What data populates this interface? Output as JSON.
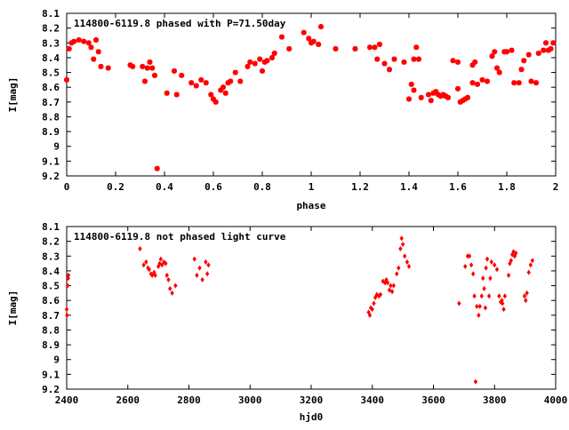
{
  "chart_data": [
    {
      "type": "scatter",
      "title": "114800-6119.8 phased with P=71.50day",
      "xlabel": "phase",
      "ylabel": "I[mag]",
      "xlim": [
        0,
        2
      ],
      "ylim": [
        9.2,
        8.1
      ],
      "y_inverted": true,
      "grid": false,
      "marker_color": "#ff0000",
      "marker": "bold-asterisk",
      "x_ticks": [
        "0",
        "0.2",
        "0.4",
        "0.6",
        "0.8",
        "1",
        "1.2",
        "1.4",
        "1.6",
        "1.8",
        "2"
      ],
      "y_ticks": [
        "8.1",
        "8.2",
        "8.3",
        "8.4",
        "8.5",
        "8.6",
        "8.7",
        "8.8",
        "8.9",
        "9",
        "9.1",
        "9.2"
      ],
      "points": [
        [
          0.0,
          8.55
        ],
        [
          0.01,
          8.34
        ],
        [
          0.02,
          8.3
        ],
        [
          0.03,
          8.29
        ],
        [
          0.05,
          8.28
        ],
        [
          0.07,
          8.29
        ],
        [
          0.09,
          8.3
        ],
        [
          0.1,
          8.33
        ],
        [
          0.11,
          8.41
        ],
        [
          0.12,
          8.28
        ],
        [
          0.13,
          8.36
        ],
        [
          0.14,
          8.46
        ],
        [
          0.17,
          8.47
        ],
        [
          0.26,
          8.45
        ],
        [
          0.27,
          8.46
        ],
        [
          0.31,
          8.46
        ],
        [
          0.32,
          8.56
        ],
        [
          0.33,
          8.47
        ],
        [
          0.34,
          8.43
        ],
        [
          0.35,
          8.47
        ],
        [
          0.36,
          8.52
        ],
        [
          0.37,
          9.15
        ],
        [
          0.41,
          8.64
        ],
        [
          0.44,
          8.49
        ],
        [
          0.45,
          8.65
        ],
        [
          0.47,
          8.52
        ],
        [
          0.51,
          8.57
        ],
        [
          0.53,
          8.59
        ],
        [
          0.55,
          8.55
        ],
        [
          0.57,
          8.57
        ],
        [
          0.59,
          8.65
        ],
        [
          0.6,
          8.68
        ],
        [
          0.61,
          8.7
        ],
        [
          0.63,
          8.62
        ],
        [
          0.64,
          8.6
        ],
        [
          0.65,
          8.64
        ],
        [
          0.66,
          8.57
        ],
        [
          0.67,
          8.56
        ],
        [
          0.69,
          8.5
        ],
        [
          0.71,
          8.56
        ],
        [
          0.74,
          8.46
        ],
        [
          0.75,
          8.43
        ],
        [
          0.77,
          8.44
        ],
        [
          0.79,
          8.41
        ],
        [
          0.8,
          8.49
        ],
        [
          0.81,
          8.43
        ],
        [
          0.82,
          8.42
        ],
        [
          0.84,
          8.4
        ],
        [
          0.85,
          8.37
        ],
        [
          0.88,
          8.26
        ],
        [
          0.91,
          8.34
        ],
        [
          0.97,
          8.23
        ],
        [
          0.99,
          8.27
        ],
        [
          1.0,
          8.3
        ],
        [
          1.01,
          8.29
        ],
        [
          1.03,
          8.31
        ],
        [
          1.04,
          8.19
        ],
        [
          1.1,
          8.34
        ],
        [
          1.18,
          8.34
        ],
        [
          1.24,
          8.33
        ],
        [
          1.26,
          8.33
        ],
        [
          1.27,
          8.41
        ],
        [
          1.28,
          8.31
        ],
        [
          1.3,
          8.44
        ],
        [
          1.32,
          8.48
        ],
        [
          1.34,
          8.41
        ],
        [
          1.38,
          8.43
        ],
        [
          1.4,
          8.68
        ],
        [
          1.41,
          8.58
        ],
        [
          1.42,
          8.62
        ],
        [
          1.42,
          8.41
        ],
        [
          1.43,
          8.33
        ],
        [
          1.44,
          8.41
        ],
        [
          1.45,
          8.67
        ],
        [
          1.48,
          8.65
        ],
        [
          1.49,
          8.69
        ],
        [
          1.5,
          8.64
        ],
        [
          1.51,
          8.63
        ],
        [
          1.52,
          8.65
        ],
        [
          1.53,
          8.66
        ],
        [
          1.54,
          8.65
        ],
        [
          1.55,
          8.66
        ],
        [
          1.56,
          8.67
        ],
        [
          1.58,
          8.42
        ],
        [
          1.6,
          8.43
        ],
        [
          1.6,
          8.61
        ],
        [
          1.61,
          8.7
        ],
        [
          1.62,
          8.69
        ],
        [
          1.63,
          8.68
        ],
        [
          1.64,
          8.67
        ],
        [
          1.66,
          8.57
        ],
        [
          1.66,
          8.45
        ],
        [
          1.67,
          8.43
        ],
        [
          1.68,
          8.58
        ],
        [
          1.7,
          8.55
        ],
        [
          1.72,
          8.56
        ],
        [
          1.74,
          8.39
        ],
        [
          1.75,
          8.36
        ],
        [
          1.76,
          8.47
        ],
        [
          1.77,
          8.5
        ],
        [
          1.79,
          8.36
        ],
        [
          1.8,
          8.36
        ],
        [
          1.82,
          8.35
        ],
        [
          1.83,
          8.57
        ],
        [
          1.85,
          8.57
        ],
        [
          1.86,
          8.48
        ],
        [
          1.87,
          8.42
        ],
        [
          1.89,
          8.38
        ],
        [
          1.9,
          8.56
        ],
        [
          1.92,
          8.57
        ],
        [
          1.93,
          8.37
        ],
        [
          1.95,
          8.35
        ],
        [
          1.96,
          8.3
        ],
        [
          1.97,
          8.35
        ],
        [
          1.98,
          8.34
        ],
        [
          1.99,
          8.3
        ]
      ]
    },
    {
      "type": "scatter",
      "title": "114800-6119.8 not phased light curve",
      "xlabel": "hjd0",
      "ylabel": "I[mag]",
      "xlim": [
        2400,
        4000
      ],
      "ylim": [
        9.2,
        8.1
      ],
      "y_inverted": true,
      "grid": false,
      "marker_color": "#ff0000",
      "marker": "small-diamond",
      "x_ticks": [
        "2400",
        "2600",
        "2800",
        "3000",
        "3200",
        "3400",
        "3600",
        "3800",
        "4000"
      ],
      "y_ticks": [
        "8.1",
        "8.2",
        "8.3",
        "8.4",
        "8.5",
        "8.6",
        "8.7",
        "8.8",
        "8.9",
        "9",
        "9.1",
        "9.2"
      ],
      "points": [
        [
          2400,
          8.66
        ],
        [
          2401,
          8.7
        ],
        [
          2403,
          8.5
        ],
        [
          2405,
          8.45
        ],
        [
          2406,
          8.43
        ],
        [
          2640,
          8.25
        ],
        [
          2652,
          8.36
        ],
        [
          2660,
          8.34
        ],
        [
          2666,
          8.38
        ],
        [
          2670,
          8.39
        ],
        [
          2676,
          8.42
        ],
        [
          2680,
          8.43
        ],
        [
          2686,
          8.41
        ],
        [
          2690,
          8.43
        ],
        [
          2700,
          8.37
        ],
        [
          2704,
          8.35
        ],
        [
          2708,
          8.32
        ],
        [
          2712,
          8.36
        ],
        [
          2718,
          8.34
        ],
        [
          2724,
          8.35
        ],
        [
          2728,
          8.43
        ],
        [
          2733,
          8.46
        ],
        [
          2738,
          8.52
        ],
        [
          2745,
          8.55
        ],
        [
          2756,
          8.5
        ],
        [
          2818,
          8.32
        ],
        [
          2826,
          8.43
        ],
        [
          2835,
          8.38
        ],
        [
          2844,
          8.46
        ],
        [
          2855,
          8.34
        ],
        [
          2860,
          8.42
        ],
        [
          2864,
          8.36
        ],
        [
          3388,
          8.68
        ],
        [
          3392,
          8.7
        ],
        [
          3395,
          8.65
        ],
        [
          3400,
          8.66
        ],
        [
          3405,
          8.62
        ],
        [
          3410,
          8.58
        ],
        [
          3415,
          8.56
        ],
        [
          3422,
          8.57
        ],
        [
          3427,
          8.56
        ],
        [
          3435,
          8.47
        ],
        [
          3442,
          8.48
        ],
        [
          3446,
          8.46
        ],
        [
          3450,
          8.48
        ],
        [
          3456,
          8.53
        ],
        [
          3460,
          8.5
        ],
        [
          3465,
          8.54
        ],
        [
          3470,
          8.5
        ],
        [
          3480,
          8.42
        ],
        [
          3486,
          8.38
        ],
        [
          3492,
          8.25
        ],
        [
          3496,
          8.18
        ],
        [
          3500,
          8.22
        ],
        [
          3506,
          8.3
        ],
        [
          3514,
          8.34
        ],
        [
          3520,
          8.37
        ],
        [
          3684,
          8.62
        ],
        [
          3704,
          8.37
        ],
        [
          3712,
          8.3
        ],
        [
          3718,
          8.3
        ],
        [
          3724,
          8.36
        ],
        [
          3730,
          8.42
        ],
        [
          3734,
          8.57
        ],
        [
          3738,
          9.15
        ],
        [
          3742,
          8.64
        ],
        [
          3748,
          8.7
        ],
        [
          3752,
          8.64
        ],
        [
          3758,
          8.57
        ],
        [
          3762,
          8.45
        ],
        [
          3766,
          8.52
        ],
        [
          3770,
          8.65
        ],
        [
          3772,
          8.38
        ],
        [
          3776,
          8.32
        ],
        [
          3782,
          8.57
        ],
        [
          3786,
          8.45
        ],
        [
          3790,
          8.34
        ],
        [
          3800,
          8.36
        ],
        [
          3808,
          8.39
        ],
        [
          3815,
          8.57
        ],
        [
          3820,
          8.61
        ],
        [
          3824,
          8.6
        ],
        [
          3826,
          8.62
        ],
        [
          3830,
          8.66
        ],
        [
          3834,
          8.57
        ],
        [
          3846,
          8.43
        ],
        [
          3850,
          8.35
        ],
        [
          3854,
          8.33
        ],
        [
          3858,
          8.29
        ],
        [
          3862,
          8.27
        ],
        [
          3866,
          8.3
        ],
        [
          3870,
          8.28
        ],
        [
          3898,
          8.57
        ],
        [
          3902,
          8.6
        ],
        [
          3906,
          8.55
        ],
        [
          3912,
          8.41
        ],
        [
          3918,
          8.36
        ],
        [
          3924,
          8.33
        ]
      ]
    }
  ]
}
